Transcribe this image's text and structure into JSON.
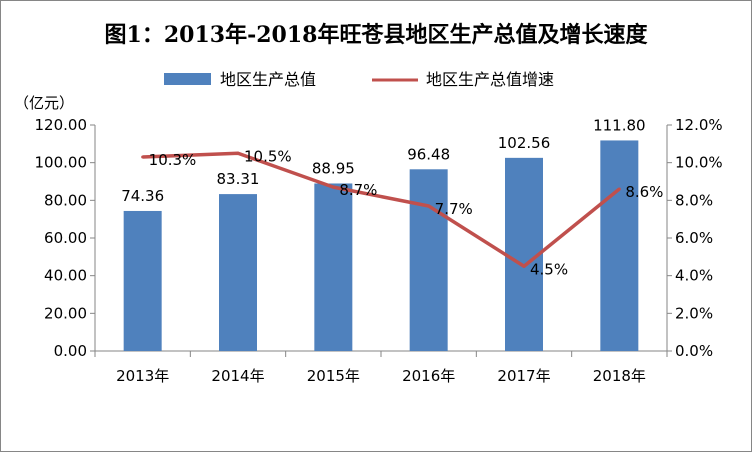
{
  "chart_data": {
    "type": "bar+line",
    "title": "图1：2013年-2018年旺苍县地区生产总值及增长速度",
    "y_unit_label": "（亿元）",
    "categories": [
      "2013年",
      "2014年",
      "2015年",
      "2016年",
      "2017年",
      "2018年"
    ],
    "series": [
      {
        "name": "地区生产总值",
        "type": "bar",
        "axis": "left",
        "color": "#4F81BD",
        "values": [
          74.36,
          83.31,
          88.95,
          96.48,
          102.56,
          111.8
        ],
        "labels": [
          "74.36",
          "83.31",
          "88.95",
          "96.48",
          "102.56",
          "111.80"
        ]
      },
      {
        "name": "地区生产总值增速",
        "type": "line",
        "axis": "right",
        "color": "#C0504D",
        "values": [
          10.3,
          10.5,
          8.7,
          7.7,
          4.5,
          8.6
        ],
        "labels": [
          "10.3%",
          "10.5%",
          "8.7%",
          "7.7%",
          "4.5%",
          "8.6%"
        ]
      }
    ],
    "y_left": {
      "min": 0,
      "max": 120,
      "ticks": [
        "0.00",
        "20.00",
        "40.00",
        "60.00",
        "80.00",
        "100.00",
        "120.00"
      ]
    },
    "y_right": {
      "min": 0,
      "max": 12,
      "ticks": [
        "0.0%",
        "2.0%",
        "4.0%",
        "6.0%",
        "8.0%",
        "10.0%",
        "12.0%"
      ]
    },
    "grid": false,
    "legend_position": "top"
  }
}
